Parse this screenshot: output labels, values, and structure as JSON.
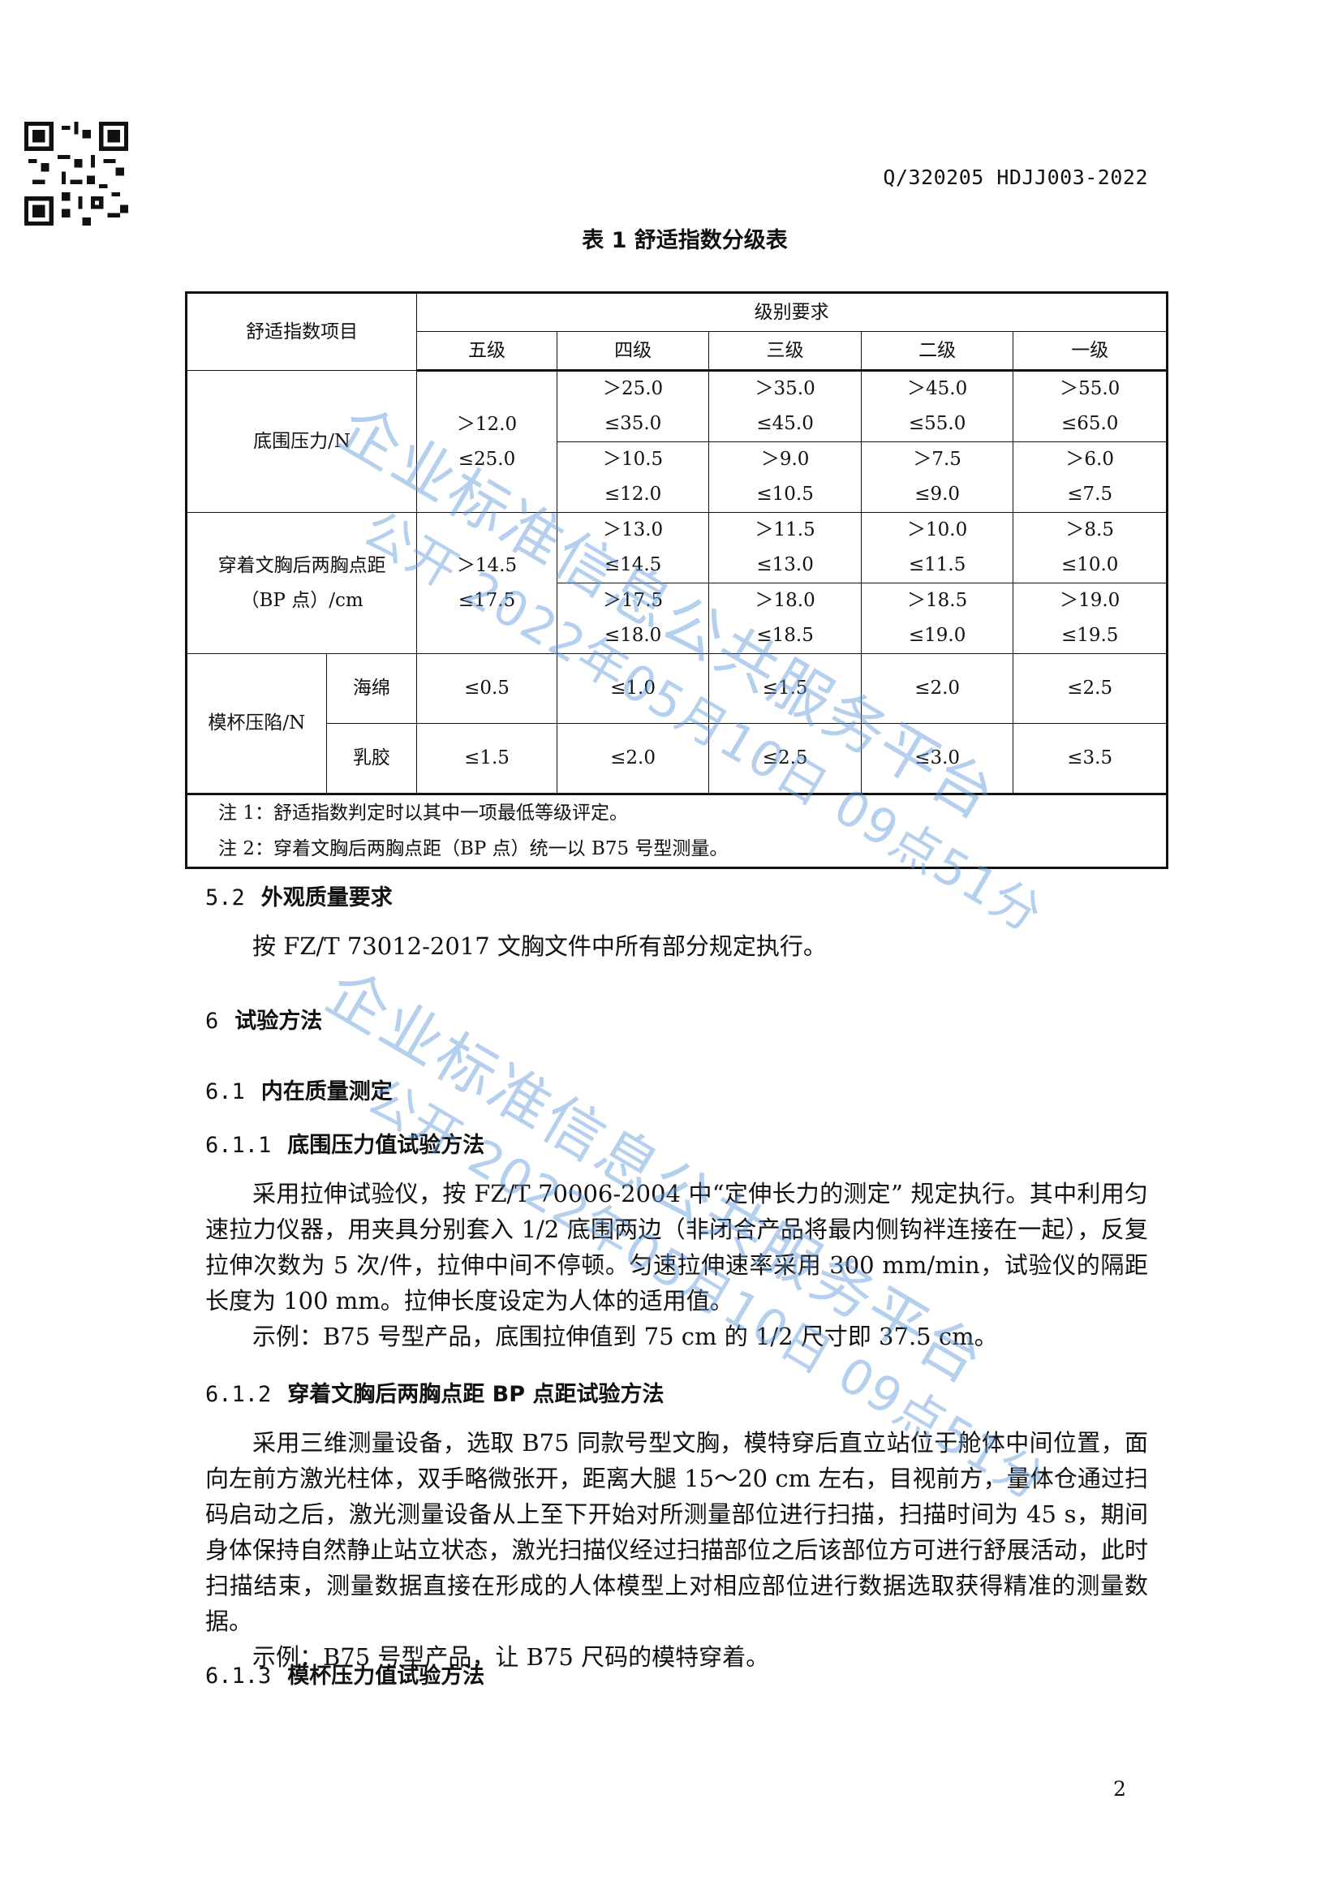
{
  "header": {
    "standard_code": "Q/320205 HDJJ003-2022"
  },
  "table": {
    "title": "表 1  舒适指数分级表",
    "item_header": "舒适指数项目",
    "grade_group": "级别要求",
    "grades": [
      "五级",
      "四级",
      "三级",
      "二级",
      "一级"
    ],
    "underbust": {
      "label": "底围压力/N",
      "level5": [
        "＞12.0",
        "≤25.0"
      ],
      "rows": [
        [
          [
            "＞25.0",
            "≤35.0"
          ],
          [
            "＞35.0",
            "≤45.0"
          ],
          [
            "＞45.0",
            "≤55.0"
          ],
          [
            "＞55.0",
            "≤65.0"
          ]
        ],
        [
          [
            "＞10.5",
            "≤12.0"
          ],
          [
            "＞9.0",
            "≤10.5"
          ],
          [
            "＞7.5",
            "≤9.0"
          ],
          [
            "＞6.0",
            "≤7.5"
          ]
        ]
      ]
    },
    "bp": {
      "label_line1": "穿着文胸后两胸点距",
      "label_line2": "（BP 点）/cm",
      "level5": [
        "＞14.5",
        "≤17.5"
      ],
      "rows": [
        [
          [
            "＞13.0",
            "≤14.5"
          ],
          [
            "＞11.5",
            "≤13.0"
          ],
          [
            "＞10.0",
            "≤11.5"
          ],
          [
            "＞8.5",
            "≤10.0"
          ]
        ],
        [
          [
            "＞17.5",
            "≤18.0"
          ],
          [
            "＞18.0",
            "≤18.5"
          ],
          [
            "＞18.5",
            "≤19.0"
          ],
          [
            "＞19.0",
            "≤19.5"
          ]
        ]
      ]
    },
    "cup": {
      "label": "模杯压陷/N",
      "sponge": {
        "label": "海绵",
        "values": [
          "≤0.5",
          "≤1.0",
          "≤1.5",
          "≤2.0",
          "≤2.5"
        ]
      },
      "latex": {
        "label": "乳胶",
        "values": [
          "≤1.5",
          "≤2.0",
          "≤2.5",
          "≤3.0",
          "≤3.5"
        ]
      }
    },
    "notes": [
      "注 1：舒适指数判定时以其中一项最低等级评定。",
      "注 2：穿着文胸后两胸点距（BP 点）统一以 B75 号型测量。"
    ]
  },
  "sections": {
    "s52": {
      "num": "5.2",
      "title": "外观质量要求",
      "text": "按 FZ/T 73012-2017 文胸文件中所有部分规定执行。"
    },
    "s6": {
      "num": "6",
      "title": "试验方法"
    },
    "s61": {
      "num": "6.1",
      "title": "内在质量测定"
    },
    "s611": {
      "num": "6.1.1",
      "title": "底围压力值试验方法",
      "text": "采用拉伸试验仪，按 FZ/T 70006-2004 中“定伸长力的测定” 规定执行。其中利用匀速拉力仪器，用夹具分别套入 1/2 底围两边（非闭合产品将最内侧钩袢连接在一起），反复拉伸次数为 5 次/件，拉伸中间不停顿。匀速拉伸速率采用 300 mm/min，试验仪的隔距长度为 100 mm。拉伸长度设定为人体的适用值。",
      "example": "示例：B75 号型产品，底围拉伸值到 75 cm 的 1/2 尺寸即 37.5 cm。"
    },
    "s612": {
      "num": "6.1.2",
      "title": "穿着文胸后两胸点距 BP 点距试验方法",
      "text": "采用三维测量设备，选取 B75 同款号型文胸，模特穿后直立站位于舱体中间位置，面向左前方激光柱体，双手略微张开，距离大腿 15～20 cm 左右，目视前方，量体仓通过扫码启动之后，激光测量设备从上至下开始对所测量部位进行扫描，扫描时间为 45 s，期间身体保持自然静止站立状态，激光扫描仪经过扫描部位之后该部位方可进行舒展活动，此时扫描结束，测量数据直接在形成的人体模型上对相应部位进行数据选取获得精准的测量数据。",
      "example": "示例：B75 号型产品，让 B75 尺码的模特穿着。"
    },
    "s613": {
      "num": "6.1.3",
      "title": "模杯压力值试验方法"
    }
  },
  "page_number": "2",
  "watermark": {
    "line1": "企业标准信息公共服务平台",
    "line2": "公开 2022年05月10日 09点51分",
    "color": "#5a96dc"
  }
}
